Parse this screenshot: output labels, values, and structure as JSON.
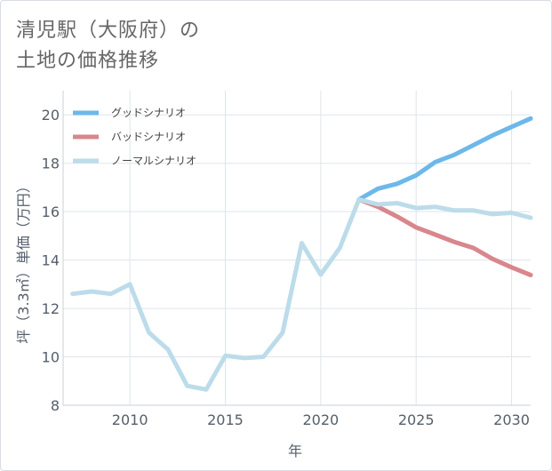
{
  "title": {
    "line1": "清児駅（大阪府）の",
    "line2": "土地の価格推移"
  },
  "chart_data": {
    "type": "line",
    "xlabel": "年",
    "ylabel": "坪（3.3㎡）単価（万円）",
    "xlim": [
      2006.5,
      2031
    ],
    "ylim": [
      8,
      21
    ],
    "xticks": [
      2010,
      2015,
      2020,
      2025,
      2030
    ],
    "yticks": [
      8,
      10,
      12,
      14,
      16,
      18,
      20
    ],
    "grid": true,
    "legend_position": "top-left",
    "series": [
      {
        "name": "グッドシナリオ",
        "color": "#6cb8ea",
        "x": [
          2022,
          2023,
          2024,
          2025,
          2026,
          2027,
          2028,
          2029,
          2030,
          2031
        ],
        "values": [
          16.5,
          16.95,
          17.15,
          17.5,
          18.05,
          18.35,
          18.75,
          19.15,
          19.5,
          19.85
        ]
      },
      {
        "name": "バッドシナリオ",
        "color": "#d9868d",
        "x": [
          2022,
          2023,
          2024,
          2025,
          2026,
          2027,
          2028,
          2029,
          2030,
          2031
        ],
        "values": [
          16.5,
          16.2,
          15.8,
          15.35,
          15.05,
          14.75,
          14.5,
          14.05,
          13.7,
          13.38
        ]
      },
      {
        "name": "ノーマルシナリオ",
        "color": "#bcdcea",
        "x": [
          2007,
          2008,
          2009,
          2010,
          2011,
          2012,
          2013,
          2014,
          2015,
          2016,
          2017,
          2018,
          2019,
          2020,
          2021,
          2022,
          2023,
          2024,
          2025,
          2026,
          2027,
          2028,
          2029,
          2030,
          2031
        ],
        "values": [
          12.6,
          12.7,
          12.6,
          13.0,
          11.0,
          10.3,
          8.8,
          8.65,
          10.05,
          9.95,
          10.0,
          11.0,
          14.7,
          13.4,
          14.5,
          16.5,
          16.3,
          16.35,
          16.15,
          16.2,
          16.05,
          16.05,
          15.9,
          15.95,
          15.75
        ]
      }
    ]
  }
}
